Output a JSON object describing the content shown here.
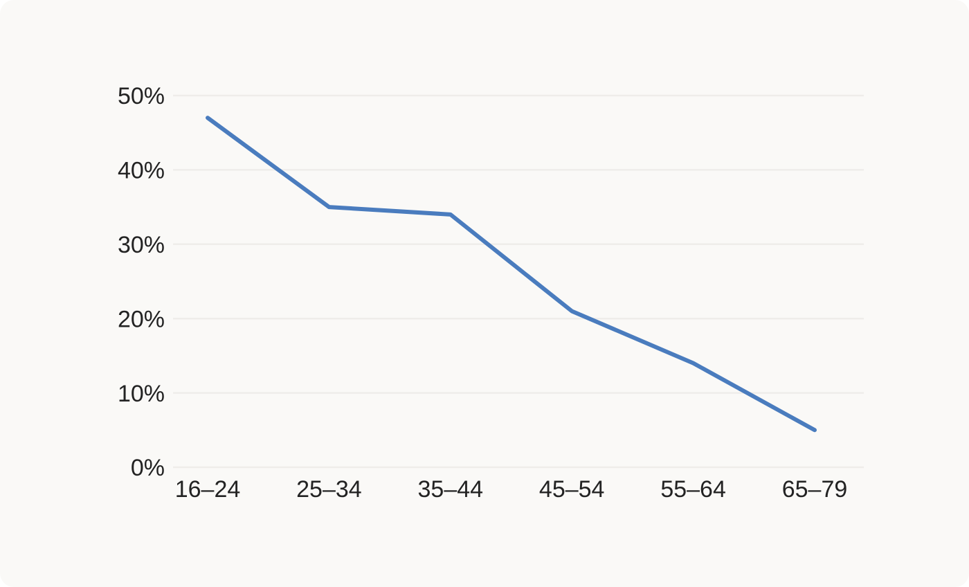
{
  "chart_data": {
    "type": "line",
    "title": "",
    "xlabel": "",
    "ylabel": "",
    "categories": [
      "16–24",
      "25–34",
      "35–44",
      "45–54",
      "55–64",
      "65–79"
    ],
    "series": [
      {
        "name": "percentage",
        "values": [
          47,
          35,
          34,
          21,
          14,
          5
        ]
      }
    ],
    "ylim": [
      0,
      50
    ],
    "yticks": [
      0,
      10,
      20,
      30,
      40,
      50
    ],
    "ytick_suffix": "%",
    "grid": true,
    "legend_position": "none",
    "markers": false,
    "colors": {
      "line": "#4a7cbe",
      "background": "#faf9f7",
      "gridline": "#efedea",
      "tick_text": "#232323"
    }
  }
}
